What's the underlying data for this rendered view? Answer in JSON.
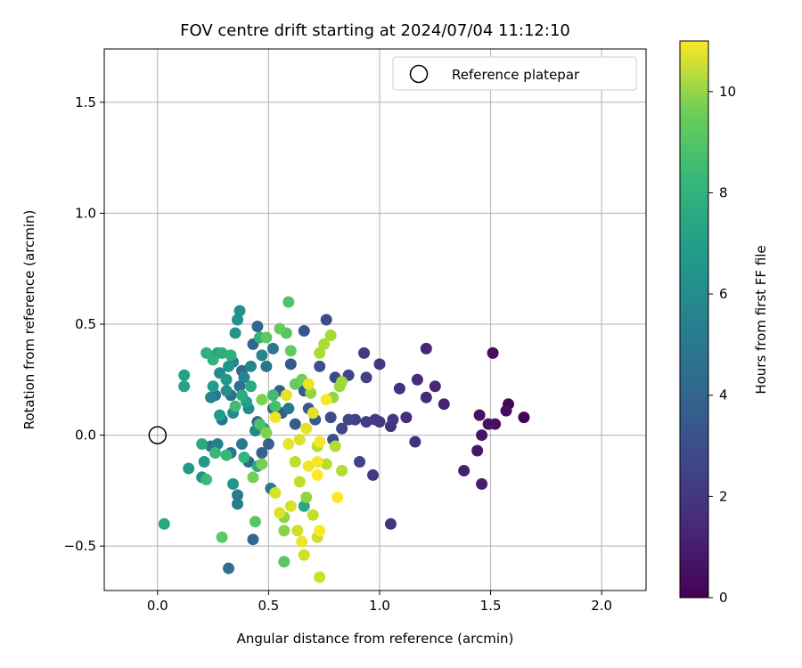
{
  "chart_data": {
    "type": "scatter",
    "title": "FOV centre drift starting at 2024/07/04 11:12:10",
    "xlabel": "Angular distance from reference (arcmin)",
    "ylabel": "Rotation from reference (arcmin)",
    "xlim": [
      -0.24,
      2.2
    ],
    "ylim": [
      -0.7,
      1.74
    ],
    "xticks": [
      0.0,
      0.5,
      1.0,
      1.5,
      2.0
    ],
    "xtick_labels": [
      "0.0",
      "0.5",
      "1.0",
      "1.5",
      "2.0"
    ],
    "yticks": [
      -0.5,
      0.0,
      0.5,
      1.0,
      1.5
    ],
    "ytick_labels": [
      "−0.5",
      "0.0",
      "0.5",
      "1.0",
      "1.5"
    ],
    "grid": true,
    "legend": {
      "position": "top-right",
      "entries": [
        "Reference platepar"
      ]
    },
    "reference_point": {
      "x": 0.0,
      "y": 0.0,
      "label": "Reference platepar",
      "marker": "open-circle"
    },
    "colorbar": {
      "label": "Hours from first FF file",
      "colormap": "viridis",
      "range": [
        0,
        11
      ],
      "ticks": [
        0,
        2,
        4,
        6,
        8,
        10
      ],
      "tick_labels": [
        "0",
        "2",
        "4",
        "6",
        "8",
        "10"
      ]
    },
    "series": [
      {
        "color_by": "hours",
        "points": [
          {
            "x": 1.65,
            "y": 0.08,
            "c": 0.1
          },
          {
            "x": 1.58,
            "y": 0.14,
            "c": 0.2
          },
          {
            "x": 1.57,
            "y": 0.11,
            "c": 0.3
          },
          {
            "x": 1.51,
            "y": 0.37,
            "c": 0.3
          },
          {
            "x": 1.49,
            "y": 0.05,
            "c": 0.4
          },
          {
            "x": 1.52,
            "y": 0.05,
            "c": 0.5
          },
          {
            "x": 1.45,
            "y": 0.09,
            "c": 0.5
          },
          {
            "x": 1.46,
            "y": 0.0,
            "c": 0.6
          },
          {
            "x": 1.44,
            "y": -0.07,
            "c": 0.7
          },
          {
            "x": 1.46,
            "y": -0.22,
            "c": 0.8
          },
          {
            "x": 1.38,
            "y": -0.16,
            "c": 1.0
          },
          {
            "x": 1.29,
            "y": 0.14,
            "c": 1.1
          },
          {
            "x": 1.25,
            "y": 0.22,
            "c": 1.2
          },
          {
            "x": 1.21,
            "y": 0.39,
            "c": 1.2
          },
          {
            "x": 1.21,
            "y": 0.17,
            "c": 1.3
          },
          {
            "x": 1.17,
            "y": 0.25,
            "c": 1.3
          },
          {
            "x": 1.12,
            "y": 0.08,
            "c": 1.4
          },
          {
            "x": 1.16,
            "y": -0.03,
            "c": 1.5
          },
          {
            "x": 1.09,
            "y": 0.21,
            "c": 1.5
          },
          {
            "x": 1.05,
            "y": 0.04,
            "c": 1.6
          },
          {
            "x": 1.06,
            "y": 0.07,
            "c": 1.7
          },
          {
            "x": 1.05,
            "y": -0.4,
            "c": 1.7
          },
          {
            "x": 1.0,
            "y": 0.06,
            "c": 1.8
          },
          {
            "x": 1.0,
            "y": 0.32,
            "c": 1.8
          },
          {
            "x": 0.98,
            "y": 0.07,
            "c": 1.9
          },
          {
            "x": 0.97,
            "y": -0.18,
            "c": 1.9
          },
          {
            "x": 0.94,
            "y": 0.06,
            "c": 2.0
          },
          {
            "x": 0.93,
            "y": 0.37,
            "c": 2.0
          },
          {
            "x": 0.94,
            "y": 0.26,
            "c": 2.1
          },
          {
            "x": 0.91,
            "y": -0.12,
            "c": 2.2
          },
          {
            "x": 0.89,
            "y": 0.07,
            "c": 2.2
          },
          {
            "x": 0.86,
            "y": 0.27,
            "c": 2.3
          },
          {
            "x": 0.86,
            "y": 0.07,
            "c": 2.3
          },
          {
            "x": 0.83,
            "y": 0.03,
            "c": 2.4
          },
          {
            "x": 0.8,
            "y": 0.26,
            "c": 2.5
          },
          {
            "x": 0.76,
            "y": 0.52,
            "c": 2.6
          },
          {
            "x": 0.78,
            "y": 0.08,
            "c": 2.6
          },
          {
            "x": 0.79,
            "y": -0.02,
            "c": 2.7
          },
          {
            "x": 0.73,
            "y": 0.31,
            "c": 2.8
          },
          {
            "x": 0.66,
            "y": 0.47,
            "c": 2.9
          },
          {
            "x": 0.6,
            "y": 0.32,
            "c": 3.0
          },
          {
            "x": 0.68,
            "y": 0.12,
            "c": 3.0
          },
          {
            "x": 0.71,
            "y": 0.07,
            "c": 3.1
          },
          {
            "x": 0.66,
            "y": 0.2,
            "c": 3.1
          },
          {
            "x": 0.62,
            "y": 0.05,
            "c": 3.2
          },
          {
            "x": 0.56,
            "y": 0.1,
            "c": 3.2
          },
          {
            "x": 0.55,
            "y": 0.2,
            "c": 3.3
          },
          {
            "x": 0.52,
            "y": 0.12,
            "c": 3.3
          },
          {
            "x": 0.5,
            "y": -0.04,
            "c": 3.4
          },
          {
            "x": 0.47,
            "y": -0.08,
            "c": 3.5
          },
          {
            "x": 0.45,
            "y": 0.06,
            "c": 3.5
          },
          {
            "x": 0.45,
            "y": 0.49,
            "c": 3.6
          },
          {
            "x": 0.43,
            "y": 0.41,
            "c": 3.6
          },
          {
            "x": 0.43,
            "y": -0.47,
            "c": 3.7
          },
          {
            "x": 0.41,
            "y": -0.12,
            "c": 3.7
          },
          {
            "x": 0.38,
            "y": 0.29,
            "c": 3.8
          },
          {
            "x": 0.37,
            "y": 0.22,
            "c": 3.9
          },
          {
            "x": 0.33,
            "y": 0.18,
            "c": 4.0
          },
          {
            "x": 0.33,
            "y": -0.08,
            "c": 4.1
          },
          {
            "x": 0.32,
            "y": -0.6,
            "c": 4.1
          },
          {
            "x": 0.29,
            "y": 0.07,
            "c": 4.2
          },
          {
            "x": 0.26,
            "y": 0.18,
            "c": 4.2
          },
          {
            "x": 0.24,
            "y": -0.05,
            "c": 4.3
          },
          {
            "x": 0.49,
            "y": 0.31,
            "c": 4.3
          },
          {
            "x": 0.52,
            "y": 0.39,
            "c": 4.4
          },
          {
            "x": 0.59,
            "y": 0.12,
            "c": 4.4
          },
          {
            "x": 0.51,
            "y": -0.24,
            "c": 4.5
          },
          {
            "x": 0.38,
            "y": -0.04,
            "c": 4.5
          },
          {
            "x": 0.36,
            "y": -0.27,
            "c": 4.6
          },
          {
            "x": 0.36,
            "y": -0.31,
            "c": 4.7
          },
          {
            "x": 0.27,
            "y": -0.04,
            "c": 4.8
          },
          {
            "x": 0.24,
            "y": 0.17,
            "c": 4.9
          },
          {
            "x": 0.34,
            "y": 0.33,
            "c": 5.0
          },
          {
            "x": 0.39,
            "y": 0.26,
            "c": 5.0
          },
          {
            "x": 0.42,
            "y": 0.31,
            "c": 5.1
          },
          {
            "x": 0.47,
            "y": 0.36,
            "c": 5.1
          },
          {
            "x": 0.41,
            "y": 0.12,
            "c": 5.2
          },
          {
            "x": 0.44,
            "y": 0.02,
            "c": 5.2
          },
          {
            "x": 0.34,
            "y": 0.1,
            "c": 5.3
          },
          {
            "x": 0.28,
            "y": 0.28,
            "c": 5.3
          },
          {
            "x": 0.31,
            "y": 0.2,
            "c": 5.4
          },
          {
            "x": 0.2,
            "y": -0.19,
            "c": 5.5
          },
          {
            "x": 0.37,
            "y": 0.56,
            "c": 5.6
          },
          {
            "x": 0.36,
            "y": 0.52,
            "c": 5.6
          },
          {
            "x": 0.35,
            "y": 0.46,
            "c": 5.7
          },
          {
            "x": 0.32,
            "y": 0.31,
            "c": 5.8
          },
          {
            "x": 0.31,
            "y": 0.25,
            "c": 5.8
          },
          {
            "x": 0.34,
            "y": -0.22,
            "c": 5.9
          },
          {
            "x": 0.21,
            "y": -0.12,
            "c": 6.0
          },
          {
            "x": 0.14,
            "y": -0.15,
            "c": 6.0
          },
          {
            "x": 0.28,
            "y": 0.09,
            "c": 6.1
          },
          {
            "x": 0.25,
            "y": 0.22,
            "c": 6.1
          },
          {
            "x": 0.4,
            "y": 0.15,
            "c": 6.2
          },
          {
            "x": 0.27,
            "y": 0.37,
            "c": 6.3
          },
          {
            "x": 0.12,
            "y": 0.27,
            "c": 6.3
          },
          {
            "x": 0.12,
            "y": 0.22,
            "c": 6.4
          },
          {
            "x": 0.66,
            "y": -0.32,
            "c": 6.5
          },
          {
            "x": 0.03,
            "y": -0.4,
            "c": 6.6
          },
          {
            "x": 0.45,
            "y": -0.14,
            "c": 6.6
          },
          {
            "x": 0.2,
            "y": -0.04,
            "c": 6.7
          },
          {
            "x": 0.48,
            "y": 0.03,
            "c": 6.7
          },
          {
            "x": 0.38,
            "y": 0.18,
            "c": 6.8
          },
          {
            "x": 0.42,
            "y": 0.22,
            "c": 6.8
          },
          {
            "x": 0.29,
            "y": 0.37,
            "c": 6.9
          },
          {
            "x": 0.22,
            "y": 0.37,
            "c": 7.0
          },
          {
            "x": 0.25,
            "y": 0.34,
            "c": 7.0
          },
          {
            "x": 0.33,
            "y": 0.36,
            "c": 7.1
          },
          {
            "x": 0.46,
            "y": 0.44,
            "c": 7.2
          },
          {
            "x": 0.39,
            "y": -0.1,
            "c": 7.2
          },
          {
            "x": 0.31,
            "y": -0.09,
            "c": 7.3
          },
          {
            "x": 0.26,
            "y": -0.08,
            "c": 7.4
          },
          {
            "x": 0.22,
            "y": -0.2,
            "c": 7.5
          },
          {
            "x": 0.35,
            "y": 0.13,
            "c": 7.6
          },
          {
            "x": 0.52,
            "y": 0.18,
            "c": 7.6
          },
          {
            "x": 0.53,
            "y": 0.13,
            "c": 7.7
          },
          {
            "x": 0.46,
            "y": 0.05,
            "c": 7.8
          },
          {
            "x": 0.59,
            "y": 0.6,
            "c": 7.9
          },
          {
            "x": 0.58,
            "y": 0.46,
            "c": 8.0
          },
          {
            "x": 0.57,
            "y": -0.57,
            "c": 8.1
          },
          {
            "x": 0.44,
            "y": -0.39,
            "c": 8.1
          },
          {
            "x": 0.29,
            "y": -0.46,
            "c": 8.2
          },
          {
            "x": 0.49,
            "y": 0.44,
            "c": 8.2
          },
          {
            "x": 0.6,
            "y": 0.38,
            "c": 8.3
          },
          {
            "x": 0.55,
            "y": 0.48,
            "c": 8.4
          },
          {
            "x": 0.62,
            "y": 0.23,
            "c": 8.4
          },
          {
            "x": 0.65,
            "y": 0.25,
            "c": 8.5
          },
          {
            "x": 0.43,
            "y": -0.19,
            "c": 8.6
          },
          {
            "x": 0.47,
            "y": -0.13,
            "c": 8.7
          },
          {
            "x": 0.47,
            "y": 0.16,
            "c": 8.8
          },
          {
            "x": 0.49,
            "y": 0.01,
            "c": 8.9
          },
          {
            "x": 0.57,
            "y": -0.43,
            "c": 9.0
          },
          {
            "x": 0.57,
            "y": -0.37,
            "c": 9.1
          },
          {
            "x": 0.67,
            "y": -0.28,
            "c": 9.1
          },
          {
            "x": 0.69,
            "y": 0.19,
            "c": 9.2
          },
          {
            "x": 0.79,
            "y": 0.17,
            "c": 9.2
          },
          {
            "x": 0.82,
            "y": 0.22,
            "c": 9.3
          },
          {
            "x": 0.83,
            "y": 0.24,
            "c": 9.4
          },
          {
            "x": 0.78,
            "y": 0.45,
            "c": 9.5
          },
          {
            "x": 0.75,
            "y": 0.41,
            "c": 9.6
          },
          {
            "x": 0.73,
            "y": 0.37,
            "c": 9.6
          },
          {
            "x": 0.8,
            "y": -0.05,
            "c": 9.7
          },
          {
            "x": 0.83,
            "y": -0.16,
            "c": 9.7
          },
          {
            "x": 0.76,
            "y": -0.13,
            "c": 9.8
          },
          {
            "x": 0.72,
            "y": -0.05,
            "c": 9.8
          },
          {
            "x": 0.62,
            "y": -0.12,
            "c": 9.9
          },
          {
            "x": 0.64,
            "y": -0.21,
            "c": 9.9
          },
          {
            "x": 0.7,
            "y": -0.36,
            "c": 10.0
          },
          {
            "x": 0.72,
            "y": -0.46,
            "c": 10.1
          },
          {
            "x": 0.73,
            "y": -0.64,
            "c": 10.1
          },
          {
            "x": 0.66,
            "y": -0.54,
            "c": 10.2
          },
          {
            "x": 0.63,
            "y": -0.43,
            "c": 10.2
          },
          {
            "x": 0.6,
            "y": -0.32,
            "c": 10.3
          },
          {
            "x": 0.53,
            "y": -0.26,
            "c": 10.3
          },
          {
            "x": 0.55,
            "y": -0.35,
            "c": 10.4
          },
          {
            "x": 0.64,
            "y": -0.02,
            "c": 10.4
          },
          {
            "x": 0.67,
            "y": 0.03,
            "c": 10.5
          },
          {
            "x": 0.7,
            "y": 0.1,
            "c": 10.5
          },
          {
            "x": 0.59,
            "y": -0.04,
            "c": 10.6
          },
          {
            "x": 0.58,
            "y": 0.18,
            "c": 10.6
          },
          {
            "x": 0.68,
            "y": 0.23,
            "c": 10.7
          },
          {
            "x": 0.53,
            "y": 0.08,
            "c": 10.8
          },
          {
            "x": 0.68,
            "y": -0.14,
            "c": 10.8
          },
          {
            "x": 0.72,
            "y": -0.12,
            "c": 10.9
          },
          {
            "x": 0.73,
            "y": -0.03,
            "c": 10.9
          },
          {
            "x": 0.81,
            "y": -0.28,
            "c": 11.0
          },
          {
            "x": 0.72,
            "y": -0.18,
            "c": 11.0
          },
          {
            "x": 0.73,
            "y": -0.43,
            "c": 11.0
          },
          {
            "x": 0.76,
            "y": 0.16,
            "c": 10.9
          },
          {
            "x": 0.65,
            "y": -0.48,
            "c": 10.8
          }
        ]
      }
    ]
  }
}
